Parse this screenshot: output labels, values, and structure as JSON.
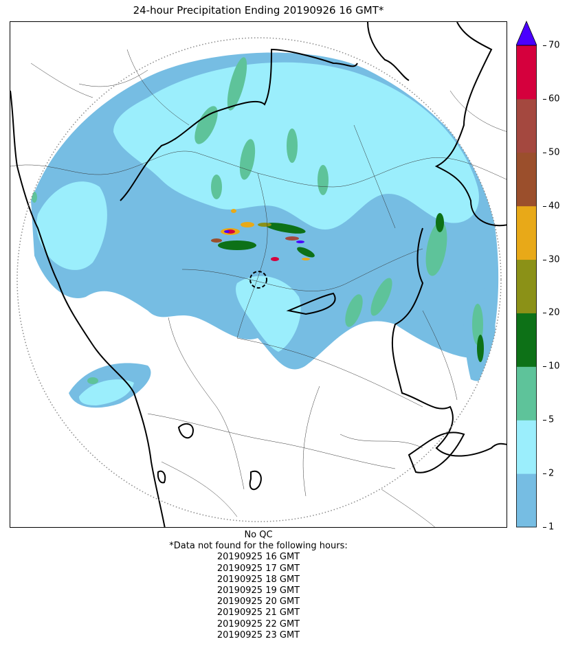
{
  "title": "24-hour Precipitation Ending 20190926 16 GMT*",
  "colorbar": {
    "ticks": [
      "1",
      "2",
      "5",
      "10",
      "20",
      "30",
      "40",
      "50",
      "60",
      "70"
    ],
    "colors": [
      "#76bde3",
      "#9beefc",
      "#5ec39a",
      "#0d7117",
      "#8b9117",
      "#e8a918",
      "#9b4f2c",
      "#a4483f",
      "#d5003d"
    ],
    "extend_color": "#4a00ff",
    "units": ""
  },
  "map": {
    "radar_range_ring": "dotted-gray",
    "features": [
      "state-borders",
      "district-borders",
      "coastline"
    ]
  },
  "notes": {
    "qc": "No QC",
    "missing_header": "*Data not found for the following hours:",
    "missing_hours": [
      "20190925 16 GMT",
      "20190925 17 GMT",
      "20190925 18 GMT",
      "20190925 19 GMT",
      "20190925 20 GMT",
      "20190925 21 GMT",
      "20190925 22 GMT",
      "20190925 23 GMT"
    ]
  }
}
